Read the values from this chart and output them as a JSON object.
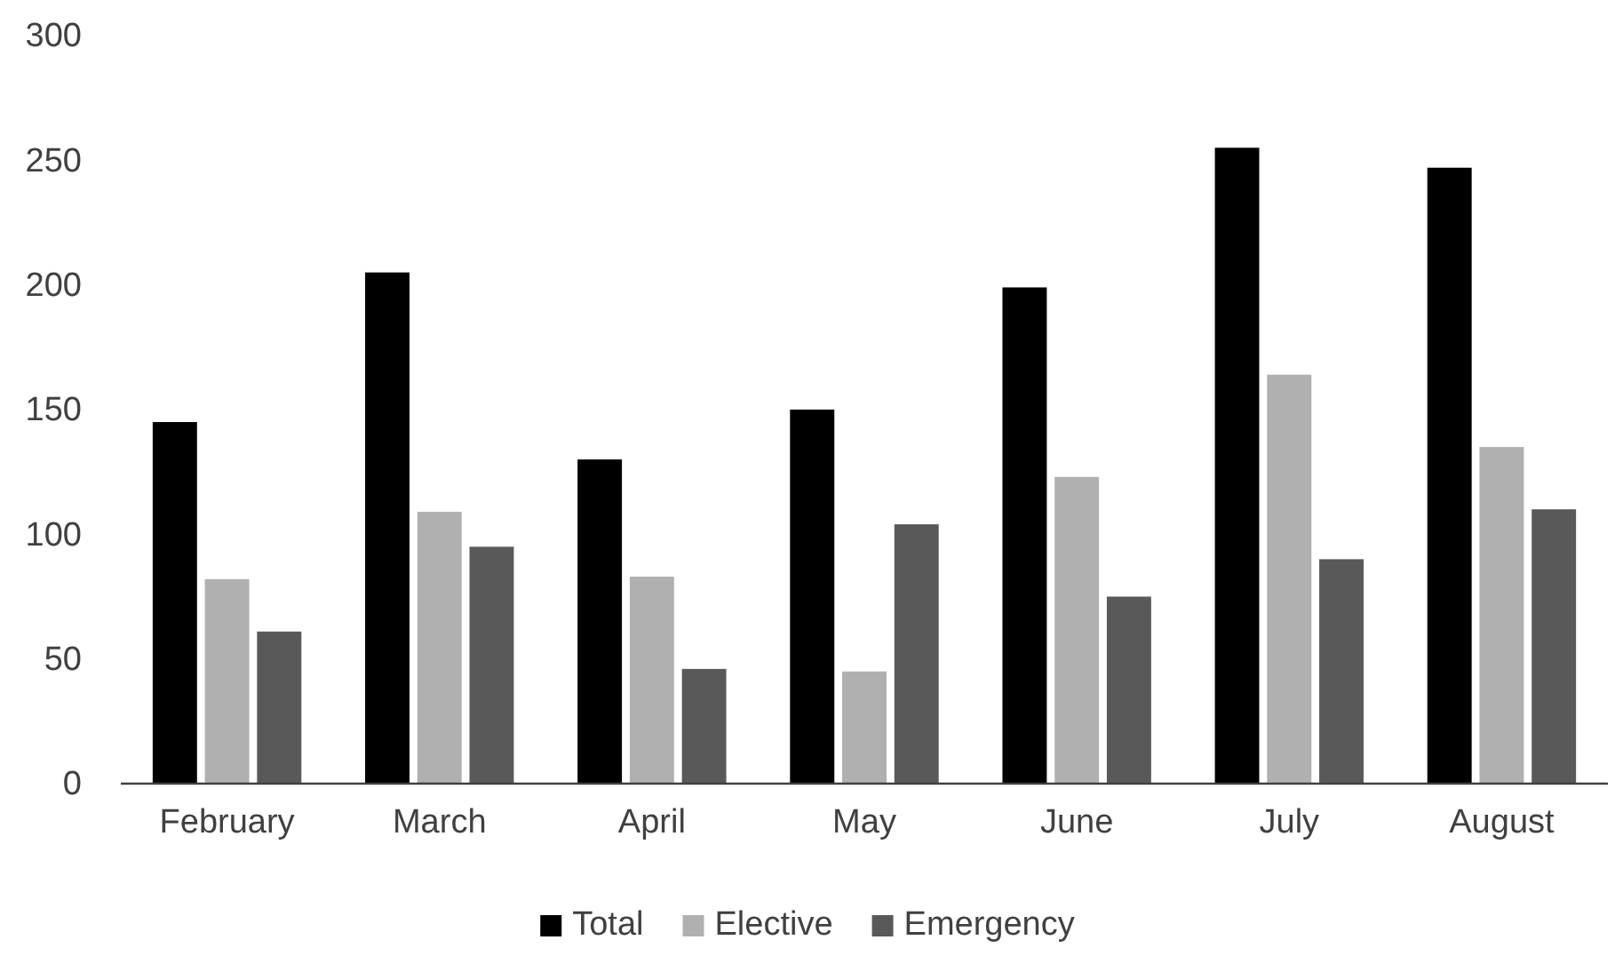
{
  "chart_data": {
    "type": "bar",
    "categories": [
      "February",
      "March",
      "April",
      "May",
      "June",
      "July",
      "August"
    ],
    "series": [
      {
        "name": "Total",
        "color": "#000000",
        "values": [
          145,
          205,
          130,
          150,
          199,
          255,
          247
        ]
      },
      {
        "name": "Elective",
        "color": "#b0b0b0",
        "values": [
          82,
          109,
          83,
          45,
          123,
          164,
          135
        ]
      },
      {
        "name": "Emergency",
        "color": "#595959",
        "values": [
          61,
          95,
          46,
          104,
          75,
          90,
          110
        ]
      }
    ],
    "ylim": [
      0,
      300
    ],
    "yticks": [
      0,
      50,
      100,
      150,
      200,
      250,
      300
    ],
    "grid": false,
    "legend": "bottom"
  }
}
